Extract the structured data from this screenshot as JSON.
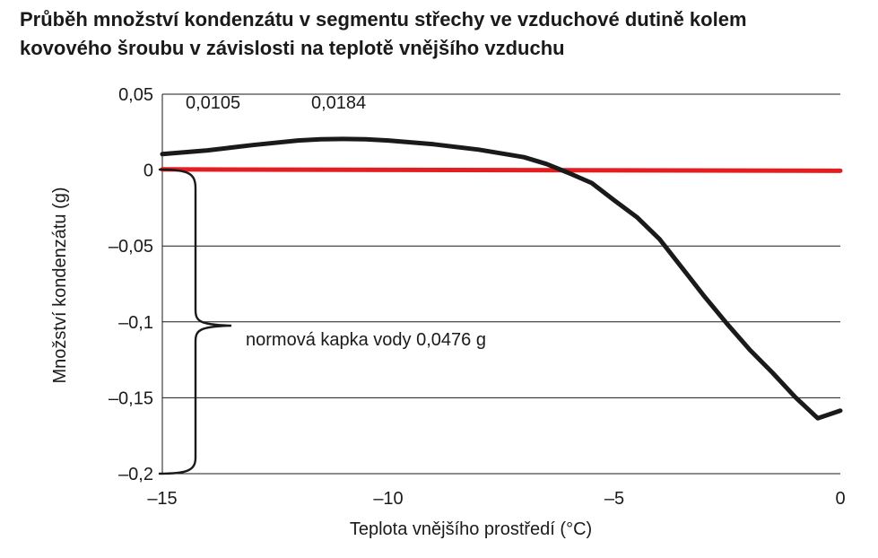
{
  "chart_data": {
    "type": "line",
    "title_lines": [
      "Průběh množství kondenzátu v segmentu střechy ve vzduchové dutině kolem",
      "kovového šroubu v závislosti na teplotě vnějšího vzduchu"
    ],
    "xlabel": "Teplota vnějšího prostředí (°C)",
    "ylabel": "Množství kondenzátu (g)",
    "xlim": [
      -15,
      0
    ],
    "ylim": [
      -0.2,
      0.05
    ],
    "x_ticks": [
      -15,
      -10,
      -5,
      0
    ],
    "x_tick_labels": [
      "–15",
      "–10",
      "–5",
      "0"
    ],
    "y_ticks": [
      0.05,
      0,
      -0.05,
      -0.1,
      -0.15,
      -0.2
    ],
    "y_tick_labels": [
      "0,05",
      "0",
      "–0,05",
      "–0,1",
      "–0,15",
      "–0,2"
    ],
    "grid": "horizontal",
    "series": [
      {
        "color": "#1a1a1a",
        "x": [
          -15,
          -14,
          -13,
          -12,
          -11.5,
          -11,
          -10.5,
          -10,
          -9,
          -8,
          -7,
          -6.5,
          -6,
          -5.5,
          -5,
          -4.5,
          -4,
          -3.5,
          -3,
          -2.5,
          -2,
          -1.5,
          -1,
          -0.5,
          0
        ],
        "y": [
          0.0105,
          0.013,
          0.0165,
          0.0195,
          0.0203,
          0.0205,
          0.0203,
          0.0195,
          0.017,
          0.0135,
          0.0085,
          0.004,
          -0.002,
          -0.0085,
          -0.02,
          -0.031,
          -0.0455,
          -0.0645,
          -0.0835,
          -0.1015,
          -0.1185,
          -0.1335,
          -0.1495,
          -0.1635,
          -0.1585
        ]
      },
      {
        "color": "#e41e20",
        "x": [
          -15,
          0
        ],
        "y": [
          0.0005,
          -0.0005
        ]
      }
    ],
    "data_labels": [
      "0,0105",
      "0,0184"
    ],
    "annotation": "normová kapka vody 0,0476 g",
    "colors": {
      "curve": "#1a1a1a",
      "zero_line": "#e41e20",
      "grid": "#1a1a1a"
    }
  }
}
